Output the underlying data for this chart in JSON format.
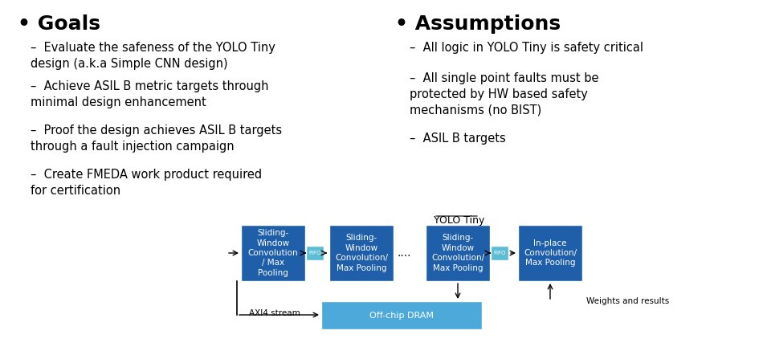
{
  "bg_color": "#ffffff",
  "text_color": "#000000",
  "goals_bullet": "• Goals",
  "goals_items": [
    "Evaluate the safeness of the YOLO Tiny\ndesign (a.k.a Simple CNN design)",
    "Achieve ASIL B metric targets through\nminimal design enhancement",
    "Proof the design achieves ASIL B targets\nthrough a fault injection campaign",
    "Create FMEDA work product required\nfor certification"
  ],
  "assumptions_bullet": "• Assumptions",
  "assumptions_items": [
    "All logic in YOLO Tiny is safety critical",
    "All single point faults must be\nprotected by HW based safety\nmechanisms (no BIST)",
    "ASIL B targets"
  ],
  "diagram_title": "YOLO Tiny",
  "box1_label": "Sliding-\nWindow\nConvolution\n/ Max\nPooling",
  "box2_label": "Sliding-\nWindow\nConvolution/\nMax Pooling",
  "box3_label": "Sliding-\nWindow\nConvolution/\nMax Pooling",
  "box4_label": "In-place\nConvolution/\nMax Pooling",
  "box_dram_label": "Off-chip DRAM",
  "fifo_label": "FIFO",
  "dots_label": "....",
  "axi4_label": "AXI4 stream",
  "weights_label": "Weights and results",
  "dark_blue": "#1f5faa",
  "light_blue": "#4da9d9",
  "fifo_color": "#5bbcd4"
}
